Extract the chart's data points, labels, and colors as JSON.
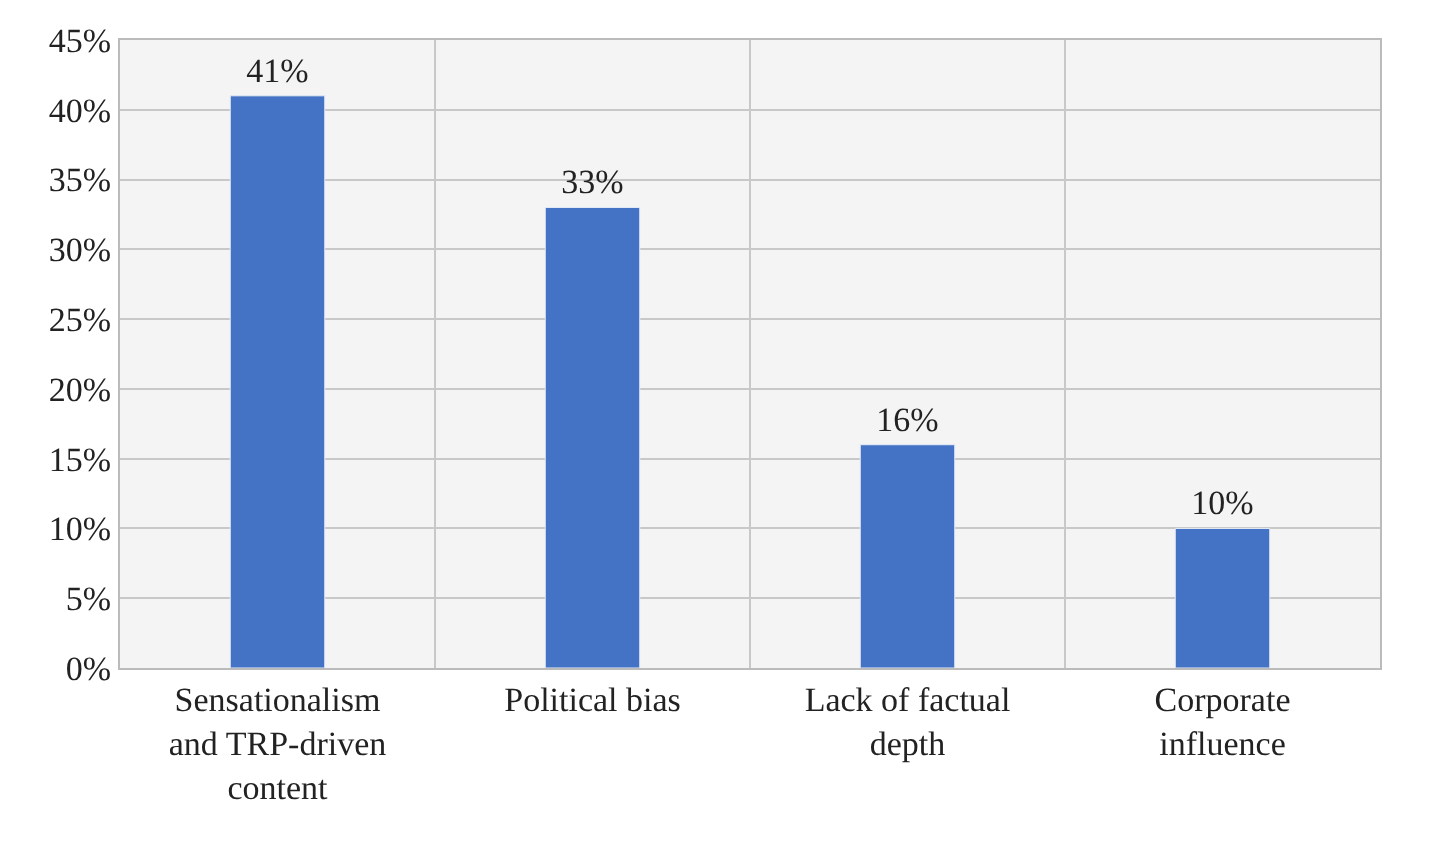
{
  "chart_data": {
    "type": "bar",
    "categories": [
      "Sensationalism and TRP-driven content",
      "Political bias",
      "Lack of factual depth",
      "Corporate influence"
    ],
    "values": [
      41,
      33,
      16,
      10
    ],
    "value_labels": [
      "41%",
      "33%",
      "16%",
      "10%"
    ],
    "color": "#4472c4",
    "ylim": [
      0,
      45
    ],
    "yticks": [
      {
        "value": 0,
        "label": "0%"
      },
      {
        "value": 5,
        "label": "5%"
      },
      {
        "value": 10,
        "label": "10%"
      },
      {
        "value": 15,
        "label": "15%"
      },
      {
        "value": 20,
        "label": "20%"
      },
      {
        "value": 25,
        "label": "25%"
      },
      {
        "value": 30,
        "label": "30%"
      },
      {
        "value": 35,
        "label": "35%"
      },
      {
        "value": 40,
        "label": "40%"
      },
      {
        "value": 45,
        "label": "45%"
      }
    ],
    "grid": true
  }
}
